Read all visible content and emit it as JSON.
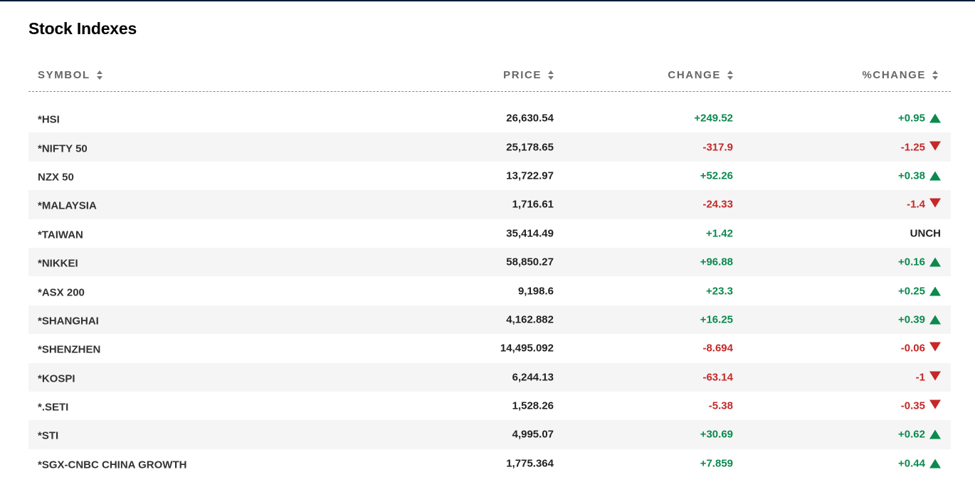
{
  "title": "Stock Indexes",
  "colors": {
    "up": "#0b8a4e",
    "down": "#c62828",
    "header": "#666666",
    "top_bar": "#0c1a3a"
  },
  "columns": {
    "symbol": "SYMBOL",
    "price": "PRICE",
    "change": "CHANGE",
    "pct_change": "%CHANGE"
  },
  "rows": [
    {
      "symbol": "*HSI",
      "price": "26,630.54",
      "change": "+249.52",
      "pct_change": "+0.95",
      "direction": "up"
    },
    {
      "symbol": "*NIFTY 50",
      "price": "25,178.65",
      "change": "-317.9",
      "pct_change": "-1.25",
      "direction": "down"
    },
    {
      "symbol": "NZX 50",
      "price": "13,722.97",
      "change": "+52.26",
      "pct_change": "+0.38",
      "direction": "up"
    },
    {
      "symbol": "*MALAYSIA",
      "price": "1,716.61",
      "change": "-24.33",
      "pct_change": "-1.4",
      "direction": "down"
    },
    {
      "symbol": "*TAIWAN",
      "price": "35,414.49",
      "change": "+1.42",
      "pct_change": "UNCH",
      "direction": "flat",
      "change_direction": "up"
    },
    {
      "symbol": "*NIKKEI",
      "price": "58,850.27",
      "change": "+96.88",
      "pct_change": "+0.16",
      "direction": "up"
    },
    {
      "symbol": "*ASX 200",
      "price": "9,198.6",
      "change": "+23.3",
      "pct_change": "+0.25",
      "direction": "up"
    },
    {
      "symbol": "*SHANGHAI",
      "price": "4,162.882",
      "change": "+16.25",
      "pct_change": "+0.39",
      "direction": "up"
    },
    {
      "symbol": "*SHENZHEN",
      "price": "14,495.092",
      "change": "-8.694",
      "pct_change": "-0.06",
      "direction": "down"
    },
    {
      "symbol": "*KOSPI",
      "price": "6,244.13",
      "change": "-63.14",
      "pct_change": "-1",
      "direction": "down"
    },
    {
      "symbol": "*.SETI",
      "price": "1,528.26",
      "change": "-5.38",
      "pct_change": "-0.35",
      "direction": "down"
    },
    {
      "symbol": "*STI",
      "price": "4,995.07",
      "change": "+30.69",
      "pct_change": "+0.62",
      "direction": "up"
    },
    {
      "symbol": "*SGX-CNBC CHINA GROWTH",
      "price": "1,775.364",
      "change": "+7.859",
      "pct_change": "+0.44",
      "direction": "up"
    }
  ]
}
